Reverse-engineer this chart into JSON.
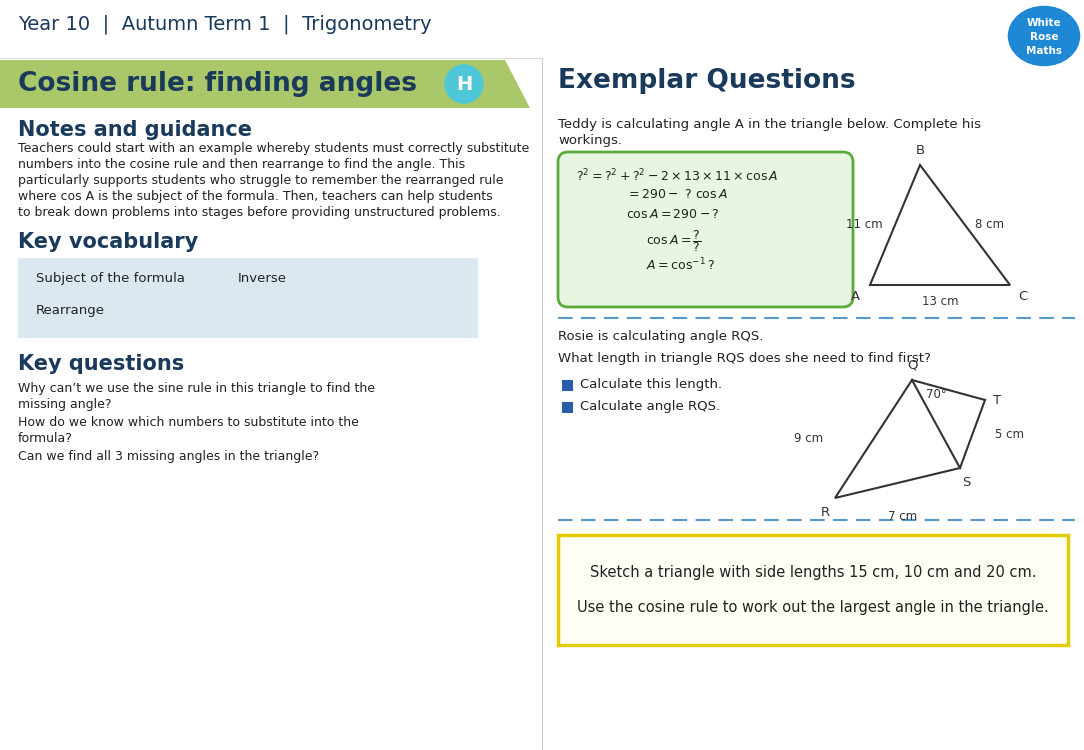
{
  "title_header": "Year 10  |  Autumn Term 1  |  Trigonometry",
  "main_title": "Cosine rule: finding angles",
  "h_label": "H",
  "banner_color": "#aac86a",
  "header_text_color": "#1a3a5c",
  "notes_title": "Notes and guidance",
  "notes_text": "Teachers could start with an example whereby students must correctly substitute\nnumbers into the cosine rule and then rearrange to find the angle. This\nparticularly supports students who struggle to remember the rearranged rule\nwhere cos A is the subject of the formula. Then, teachers can help students\nto break down problems into stages before providing unstructured problems.",
  "vocab_title": "Key vocabulary",
  "vocab_items_col1": [
    "Subject of the formula",
    "Rearrange"
  ],
  "vocab_items_col2": [
    "Inverse",
    ""
  ],
  "vocab_bg": "#dce8f0",
  "questions_title": "Key questions",
  "questions_items": [
    "Why can’t we use the sine rule in this triangle to find the\nmissing angle?",
    "How do we know which numbers to substitute into the\nformula?",
    "Can we find all 3 missing angles in the triangle?"
  ],
  "exemplar_title": "Exemplar Questions",
  "teddy_text": "Teddy is calculating angle A in the triangle below. Complete his\nworkings.",
  "formula_bg": "#e8f5e0",
  "formula_border": "#5aaa3c",
  "rosie_text": "Rosie is calculating angle RQS.",
  "question2_text": "What length in triangle RQS does she need to find first?",
  "bullet_items": [
    "Calculate this length.",
    "Calculate angle RQS."
  ],
  "bullet_color": "#2a5caa",
  "sketch_text1": "Sketch a triangle with side lengths 15 cm, 10 cm and 20 cm.",
  "sketch_text2": "Use the cosine rule to work out the largest angle in the triangle.",
  "sketch_border": "#e0cc00",
  "sketch_bg": "#fefef5",
  "dashed_color": "#5599cc",
  "logo_bg": "#1e88d4"
}
